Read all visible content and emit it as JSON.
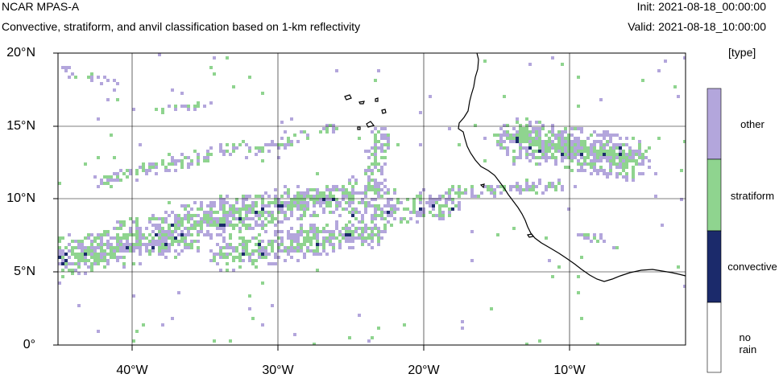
{
  "header": {
    "title": "NCAR MPAS-A",
    "subtitle": "Convective, stratiform, and anvil classification based on 1-km reflectivity",
    "init": "Init: 2021-08-18_00:00:00",
    "valid": "Valid: 2021-08-18_10:00:00"
  },
  "axes": {
    "lat_labels": [
      "20°N",
      "15°N",
      "10°N",
      "5°N",
      "0°"
    ],
    "lon_labels": [
      "40°W",
      "30°W",
      "20°W",
      "10°W"
    ]
  },
  "colorbar": {
    "units": "[type]",
    "categories": [
      {
        "label": "other",
        "color": "#b3a6dc"
      },
      {
        "label": "stratiform",
        "color": "#8fd48f"
      },
      {
        "label": "convective",
        "color": "#1b2a6b"
      },
      {
        "label": "no rain",
        "color": "#ffffff"
      }
    ]
  },
  "colors": {
    "other": "#b3a6dc",
    "stratiform": "#8fd48f",
    "convective": "#1b2a6b",
    "coastline": "#000000",
    "grid": "#000000"
  }
}
